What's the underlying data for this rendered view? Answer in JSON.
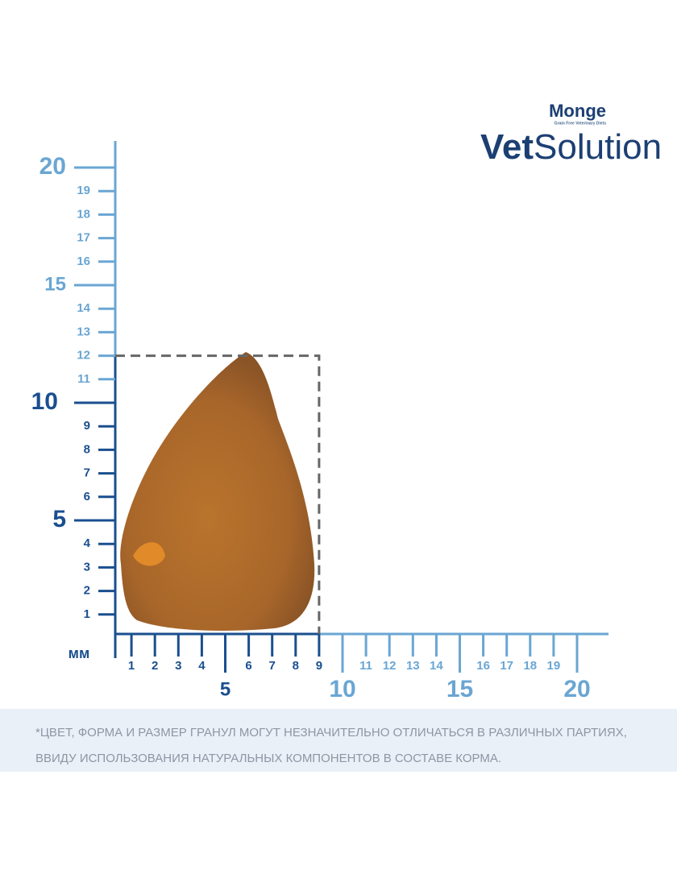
{
  "brand": {
    "maker": "Monge",
    "tagline": "Grain Free Veterinary Diets",
    "line_bold": "Vet",
    "line_light": "Solution"
  },
  "unit": "мм",
  "y_axis": {
    "labels": [
      1,
      2,
      3,
      4,
      5,
      6,
      7,
      8,
      9,
      10,
      11,
      12,
      13,
      14,
      15,
      16,
      17,
      18,
      19,
      20
    ],
    "major": [
      5,
      10,
      15,
      20
    ]
  },
  "x_axis": {
    "labels": [
      1,
      2,
      3,
      4,
      5,
      6,
      7,
      8,
      9,
      10,
      11,
      12,
      13,
      14,
      15,
      16,
      17,
      18,
      19,
      20
    ],
    "major": [
      5,
      10,
      15,
      20
    ]
  },
  "kibble": {
    "width": 9,
    "height": 12
  },
  "note": {
    "lines": [
      "*ЦВЕТ, ФОРМА И РАЗМЕР ГРАНУЛ МОГУТ НЕЗНАЧИТЕЛЬНО ОТЛИЧАТЬСЯ В РАЗЛИЧНЫХ ПАРТИЯХ,",
      "ВВИДУ ИСПОЛЬЗОВАНИЯ НАТУРАЛЬНЫХ КОМПОНЕНТОВ В СОСТАВЕ КОРМА."
    ]
  }
}
